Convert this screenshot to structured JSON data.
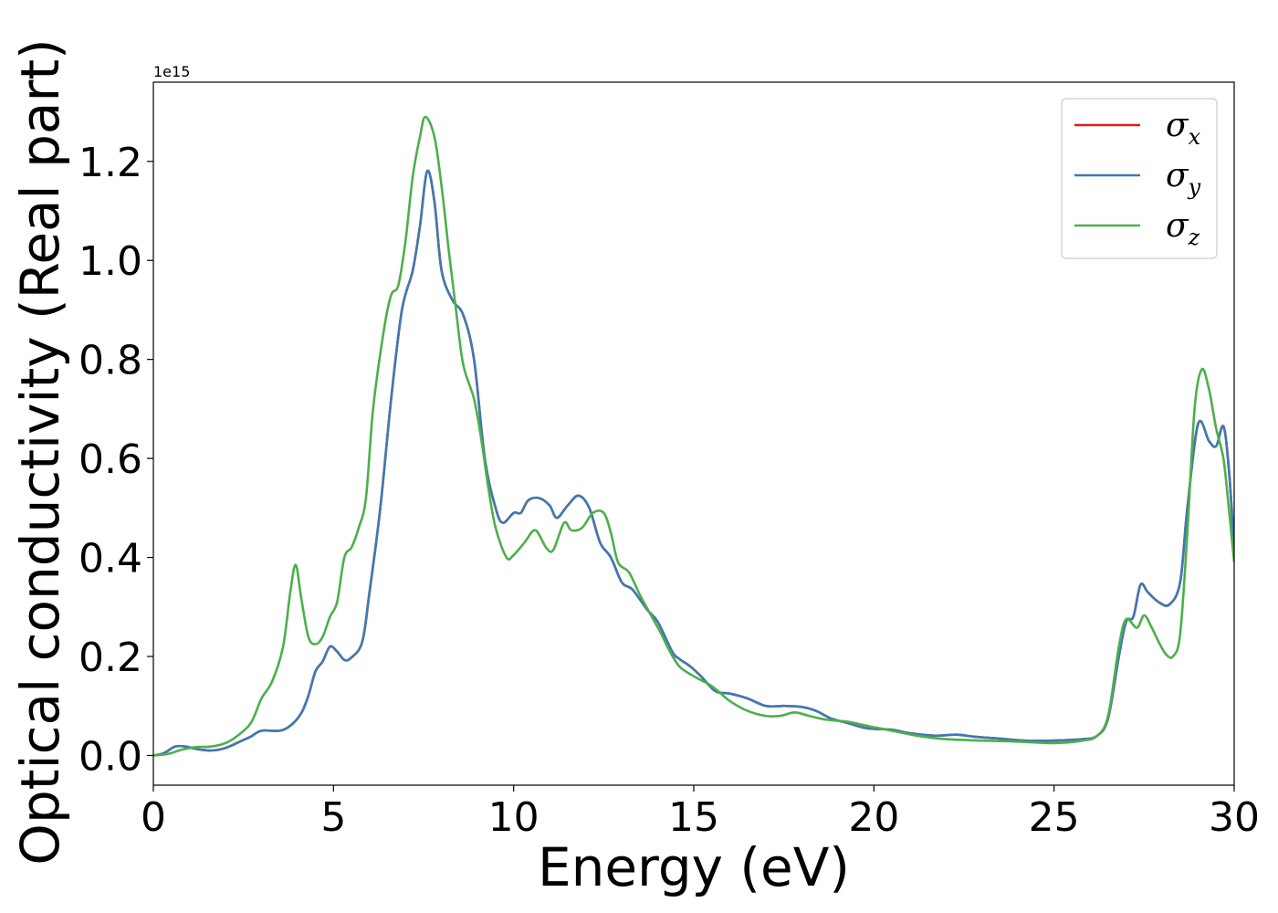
{
  "chart_data": {
    "type": "line",
    "xlabel": "Energy (eV)",
    "ylabel": "Optical conductivity (Real part)",
    "y_offset_text": "1e15",
    "xlim": [
      0,
      30
    ],
    "ylim": [
      -0.06,
      1.36
    ],
    "y_scale_factor": 1000000000000000.0,
    "grid": false,
    "legend_position": "top-right",
    "x_ticks": [
      0,
      5,
      10,
      15,
      20,
      25,
      30
    ],
    "x_tick_labels": [
      "0",
      "5",
      "10",
      "15",
      "20",
      "25",
      "30"
    ],
    "y_ticks": [
      0.0,
      0.2,
      0.4,
      0.6,
      0.8,
      1.0,
      1.2
    ],
    "y_tick_labels": [
      "0.0",
      "0.2",
      "0.4",
      "0.6",
      "0.8",
      "1.0",
      "1.2"
    ],
    "series": [
      {
        "name": "σ",
        "sub": "x",
        "color": "#e41a1c",
        "points": [
          [
            0,
            0.0
          ],
          [
            0.3,
            0.005
          ],
          [
            0.6,
            0.018
          ],
          [
            0.9,
            0.018
          ],
          [
            1.2,
            0.013
          ],
          [
            1.6,
            0.01
          ],
          [
            2.0,
            0.015
          ],
          [
            2.4,
            0.028
          ],
          [
            2.7,
            0.038
          ],
          [
            3.0,
            0.05
          ],
          [
            3.5,
            0.05
          ],
          [
            3.8,
            0.06
          ],
          [
            4.1,
            0.085
          ],
          [
            4.3,
            0.12
          ],
          [
            4.5,
            0.17
          ],
          [
            4.7,
            0.19
          ],
          [
            4.9,
            0.22
          ],
          [
            5.1,
            0.21
          ],
          [
            5.3,
            0.193
          ],
          [
            5.5,
            0.198
          ],
          [
            5.8,
            0.23
          ],
          [
            6.0,
            0.33
          ],
          [
            6.3,
            0.5
          ],
          [
            6.6,
            0.72
          ],
          [
            6.9,
            0.9
          ],
          [
            7.2,
            0.98
          ],
          [
            7.4,
            1.07
          ],
          [
            7.6,
            1.18
          ],
          [
            7.8,
            1.12
          ],
          [
            8.0,
            0.98
          ],
          [
            8.3,
            0.92
          ],
          [
            8.6,
            0.89
          ],
          [
            8.9,
            0.8
          ],
          [
            9.2,
            0.6
          ],
          [
            9.5,
            0.5
          ],
          [
            9.7,
            0.47
          ],
          [
            10.0,
            0.49
          ],
          [
            10.2,
            0.49
          ],
          [
            10.4,
            0.515
          ],
          [
            10.7,
            0.52
          ],
          [
            11.0,
            0.505
          ],
          [
            11.2,
            0.48
          ],
          [
            11.5,
            0.505
          ],
          [
            11.8,
            0.525
          ],
          [
            12.1,
            0.5
          ],
          [
            12.4,
            0.43
          ],
          [
            12.7,
            0.4
          ],
          [
            13.0,
            0.35
          ],
          [
            13.3,
            0.335
          ],
          [
            13.7,
            0.295
          ],
          [
            14.0,
            0.27
          ],
          [
            14.4,
            0.21
          ],
          [
            14.6,
            0.195
          ],
          [
            14.9,
            0.18
          ],
          [
            15.2,
            0.16
          ],
          [
            15.6,
            0.13
          ],
          [
            16.0,
            0.125
          ],
          [
            16.5,
            0.115
          ],
          [
            17.0,
            0.1
          ],
          [
            17.5,
            0.1
          ],
          [
            18.0,
            0.098
          ],
          [
            18.4,
            0.09
          ],
          [
            18.8,
            0.075
          ],
          [
            19.3,
            0.065
          ],
          [
            19.8,
            0.055
          ],
          [
            20.5,
            0.052
          ],
          [
            21.0,
            0.045
          ],
          [
            21.7,
            0.04
          ],
          [
            22.3,
            0.042
          ],
          [
            22.8,
            0.038
          ],
          [
            23.5,
            0.034
          ],
          [
            24.2,
            0.03
          ],
          [
            25.0,
            0.03
          ],
          [
            25.8,
            0.033
          ],
          [
            26.2,
            0.04
          ],
          [
            26.5,
            0.075
          ],
          [
            26.8,
            0.2
          ],
          [
            27.0,
            0.27
          ],
          [
            27.2,
            0.28
          ],
          [
            27.4,
            0.345
          ],
          [
            27.6,
            0.33
          ],
          [
            27.9,
            0.31
          ],
          [
            28.2,
            0.305
          ],
          [
            28.5,
            0.35
          ],
          [
            28.7,
            0.5
          ],
          [
            29.0,
            0.67
          ],
          [
            29.3,
            0.635
          ],
          [
            29.5,
            0.625
          ],
          [
            29.7,
            0.665
          ],
          [
            29.85,
            0.58
          ],
          [
            30.0,
            0.42
          ]
        ]
      },
      {
        "name": "σ",
        "sub": "y",
        "color": "#3d7ab3",
        "points": [
          [
            0,
            0.0
          ],
          [
            0.3,
            0.005
          ],
          [
            0.6,
            0.018
          ],
          [
            0.9,
            0.018
          ],
          [
            1.2,
            0.013
          ],
          [
            1.6,
            0.01
          ],
          [
            2.0,
            0.015
          ],
          [
            2.4,
            0.028
          ],
          [
            2.7,
            0.038
          ],
          [
            3.0,
            0.05
          ],
          [
            3.5,
            0.05
          ],
          [
            3.8,
            0.06
          ],
          [
            4.1,
            0.085
          ],
          [
            4.3,
            0.12
          ],
          [
            4.5,
            0.17
          ],
          [
            4.7,
            0.19
          ],
          [
            4.9,
            0.22
          ],
          [
            5.1,
            0.21
          ],
          [
            5.3,
            0.193
          ],
          [
            5.5,
            0.198
          ],
          [
            5.8,
            0.23
          ],
          [
            6.0,
            0.33
          ],
          [
            6.3,
            0.5
          ],
          [
            6.6,
            0.72
          ],
          [
            6.9,
            0.9
          ],
          [
            7.2,
            0.98
          ],
          [
            7.4,
            1.07
          ],
          [
            7.6,
            1.18
          ],
          [
            7.8,
            1.12
          ],
          [
            8.0,
            0.98
          ],
          [
            8.3,
            0.92
          ],
          [
            8.6,
            0.89
          ],
          [
            8.9,
            0.8
          ],
          [
            9.2,
            0.6
          ],
          [
            9.5,
            0.5
          ],
          [
            9.7,
            0.47
          ],
          [
            10.0,
            0.49
          ],
          [
            10.2,
            0.49
          ],
          [
            10.4,
            0.515
          ],
          [
            10.7,
            0.52
          ],
          [
            11.0,
            0.505
          ],
          [
            11.2,
            0.48
          ],
          [
            11.5,
            0.505
          ],
          [
            11.8,
            0.525
          ],
          [
            12.1,
            0.5
          ],
          [
            12.4,
            0.43
          ],
          [
            12.7,
            0.4
          ],
          [
            13.0,
            0.35
          ],
          [
            13.3,
            0.335
          ],
          [
            13.7,
            0.295
          ],
          [
            14.0,
            0.27
          ],
          [
            14.4,
            0.21
          ],
          [
            14.6,
            0.195
          ],
          [
            14.9,
            0.18
          ],
          [
            15.2,
            0.16
          ],
          [
            15.6,
            0.13
          ],
          [
            16.0,
            0.125
          ],
          [
            16.5,
            0.115
          ],
          [
            17.0,
            0.1
          ],
          [
            17.5,
            0.1
          ],
          [
            18.0,
            0.098
          ],
          [
            18.4,
            0.09
          ],
          [
            18.8,
            0.075
          ],
          [
            19.3,
            0.065
          ],
          [
            19.8,
            0.055
          ],
          [
            20.5,
            0.052
          ],
          [
            21.0,
            0.045
          ],
          [
            21.7,
            0.04
          ],
          [
            22.3,
            0.042
          ],
          [
            22.8,
            0.038
          ],
          [
            23.5,
            0.034
          ],
          [
            24.2,
            0.03
          ],
          [
            25.0,
            0.03
          ],
          [
            25.8,
            0.033
          ],
          [
            26.2,
            0.04
          ],
          [
            26.5,
            0.075
          ],
          [
            26.8,
            0.2
          ],
          [
            27.0,
            0.27
          ],
          [
            27.2,
            0.28
          ],
          [
            27.4,
            0.345
          ],
          [
            27.6,
            0.33
          ],
          [
            27.9,
            0.31
          ],
          [
            28.2,
            0.305
          ],
          [
            28.5,
            0.35
          ],
          [
            28.7,
            0.5
          ],
          [
            29.0,
            0.67
          ],
          [
            29.3,
            0.635
          ],
          [
            29.5,
            0.625
          ],
          [
            29.7,
            0.665
          ],
          [
            29.85,
            0.58
          ],
          [
            30.0,
            0.42
          ]
        ]
      },
      {
        "name": "σ",
        "sub": "z",
        "color": "#4daf4a",
        "points": [
          [
            0,
            0.0
          ],
          [
            0.4,
            0.003
          ],
          [
            0.8,
            0.012
          ],
          [
            1.2,
            0.017
          ],
          [
            1.6,
            0.018
          ],
          [
            2.0,
            0.025
          ],
          [
            2.3,
            0.038
          ],
          [
            2.7,
            0.065
          ],
          [
            3.0,
            0.115
          ],
          [
            3.3,
            0.15
          ],
          [
            3.6,
            0.22
          ],
          [
            3.8,
            0.33
          ],
          [
            3.95,
            0.385
          ],
          [
            4.1,
            0.32
          ],
          [
            4.3,
            0.24
          ],
          [
            4.5,
            0.225
          ],
          [
            4.7,
            0.24
          ],
          [
            4.9,
            0.28
          ],
          [
            5.1,
            0.31
          ],
          [
            5.3,
            0.4
          ],
          [
            5.5,
            0.42
          ],
          [
            5.7,
            0.46
          ],
          [
            5.9,
            0.52
          ],
          [
            6.1,
            0.7
          ],
          [
            6.4,
            0.86
          ],
          [
            6.6,
            0.93
          ],
          [
            6.8,
            0.95
          ],
          [
            7.0,
            1.04
          ],
          [
            7.2,
            1.17
          ],
          [
            7.4,
            1.25
          ],
          [
            7.55,
            1.29
          ],
          [
            7.8,
            1.25
          ],
          [
            8.0,
            1.15
          ],
          [
            8.2,
            1.02
          ],
          [
            8.4,
            0.9
          ],
          [
            8.6,
            0.79
          ],
          [
            8.9,
            0.72
          ],
          [
            9.1,
            0.64
          ],
          [
            9.3,
            0.54
          ],
          [
            9.5,
            0.46
          ],
          [
            9.8,
            0.4
          ],
          [
            10.0,
            0.405
          ],
          [
            10.3,
            0.43
          ],
          [
            10.6,
            0.455
          ],
          [
            10.9,
            0.42
          ],
          [
            11.1,
            0.415
          ],
          [
            11.4,
            0.47
          ],
          [
            11.6,
            0.455
          ],
          [
            11.9,
            0.46
          ],
          [
            12.2,
            0.49
          ],
          [
            12.5,
            0.49
          ],
          [
            12.7,
            0.45
          ],
          [
            12.9,
            0.39
          ],
          [
            13.2,
            0.37
          ],
          [
            13.5,
            0.325
          ],
          [
            13.8,
            0.285
          ],
          [
            14.1,
            0.245
          ],
          [
            14.3,
            0.215
          ],
          [
            14.6,
            0.18
          ],
          [
            15.0,
            0.16
          ],
          [
            15.5,
            0.14
          ],
          [
            16.0,
            0.11
          ],
          [
            16.5,
            0.09
          ],
          [
            17.0,
            0.08
          ],
          [
            17.4,
            0.08
          ],
          [
            17.8,
            0.087
          ],
          [
            18.2,
            0.08
          ],
          [
            18.7,
            0.072
          ],
          [
            19.3,
            0.068
          ],
          [
            19.8,
            0.06
          ],
          [
            20.5,
            0.05
          ],
          [
            21.2,
            0.04
          ],
          [
            22.0,
            0.033
          ],
          [
            23.0,
            0.03
          ],
          [
            24.0,
            0.028
          ],
          [
            25.0,
            0.025
          ],
          [
            25.8,
            0.03
          ],
          [
            26.2,
            0.04
          ],
          [
            26.5,
            0.08
          ],
          [
            26.8,
            0.22
          ],
          [
            27.0,
            0.275
          ],
          [
            27.3,
            0.258
          ],
          [
            27.5,
            0.283
          ],
          [
            27.7,
            0.26
          ],
          [
            27.9,
            0.23
          ],
          [
            28.1,
            0.205
          ],
          [
            28.3,
            0.2
          ],
          [
            28.5,
            0.245
          ],
          [
            28.7,
            0.45
          ],
          [
            28.9,
            0.7
          ],
          [
            29.1,
            0.78
          ],
          [
            29.3,
            0.74
          ],
          [
            29.5,
            0.66
          ],
          [
            29.7,
            0.6
          ],
          [
            29.85,
            0.5
          ],
          [
            30.0,
            0.39
          ]
        ]
      }
    ]
  }
}
